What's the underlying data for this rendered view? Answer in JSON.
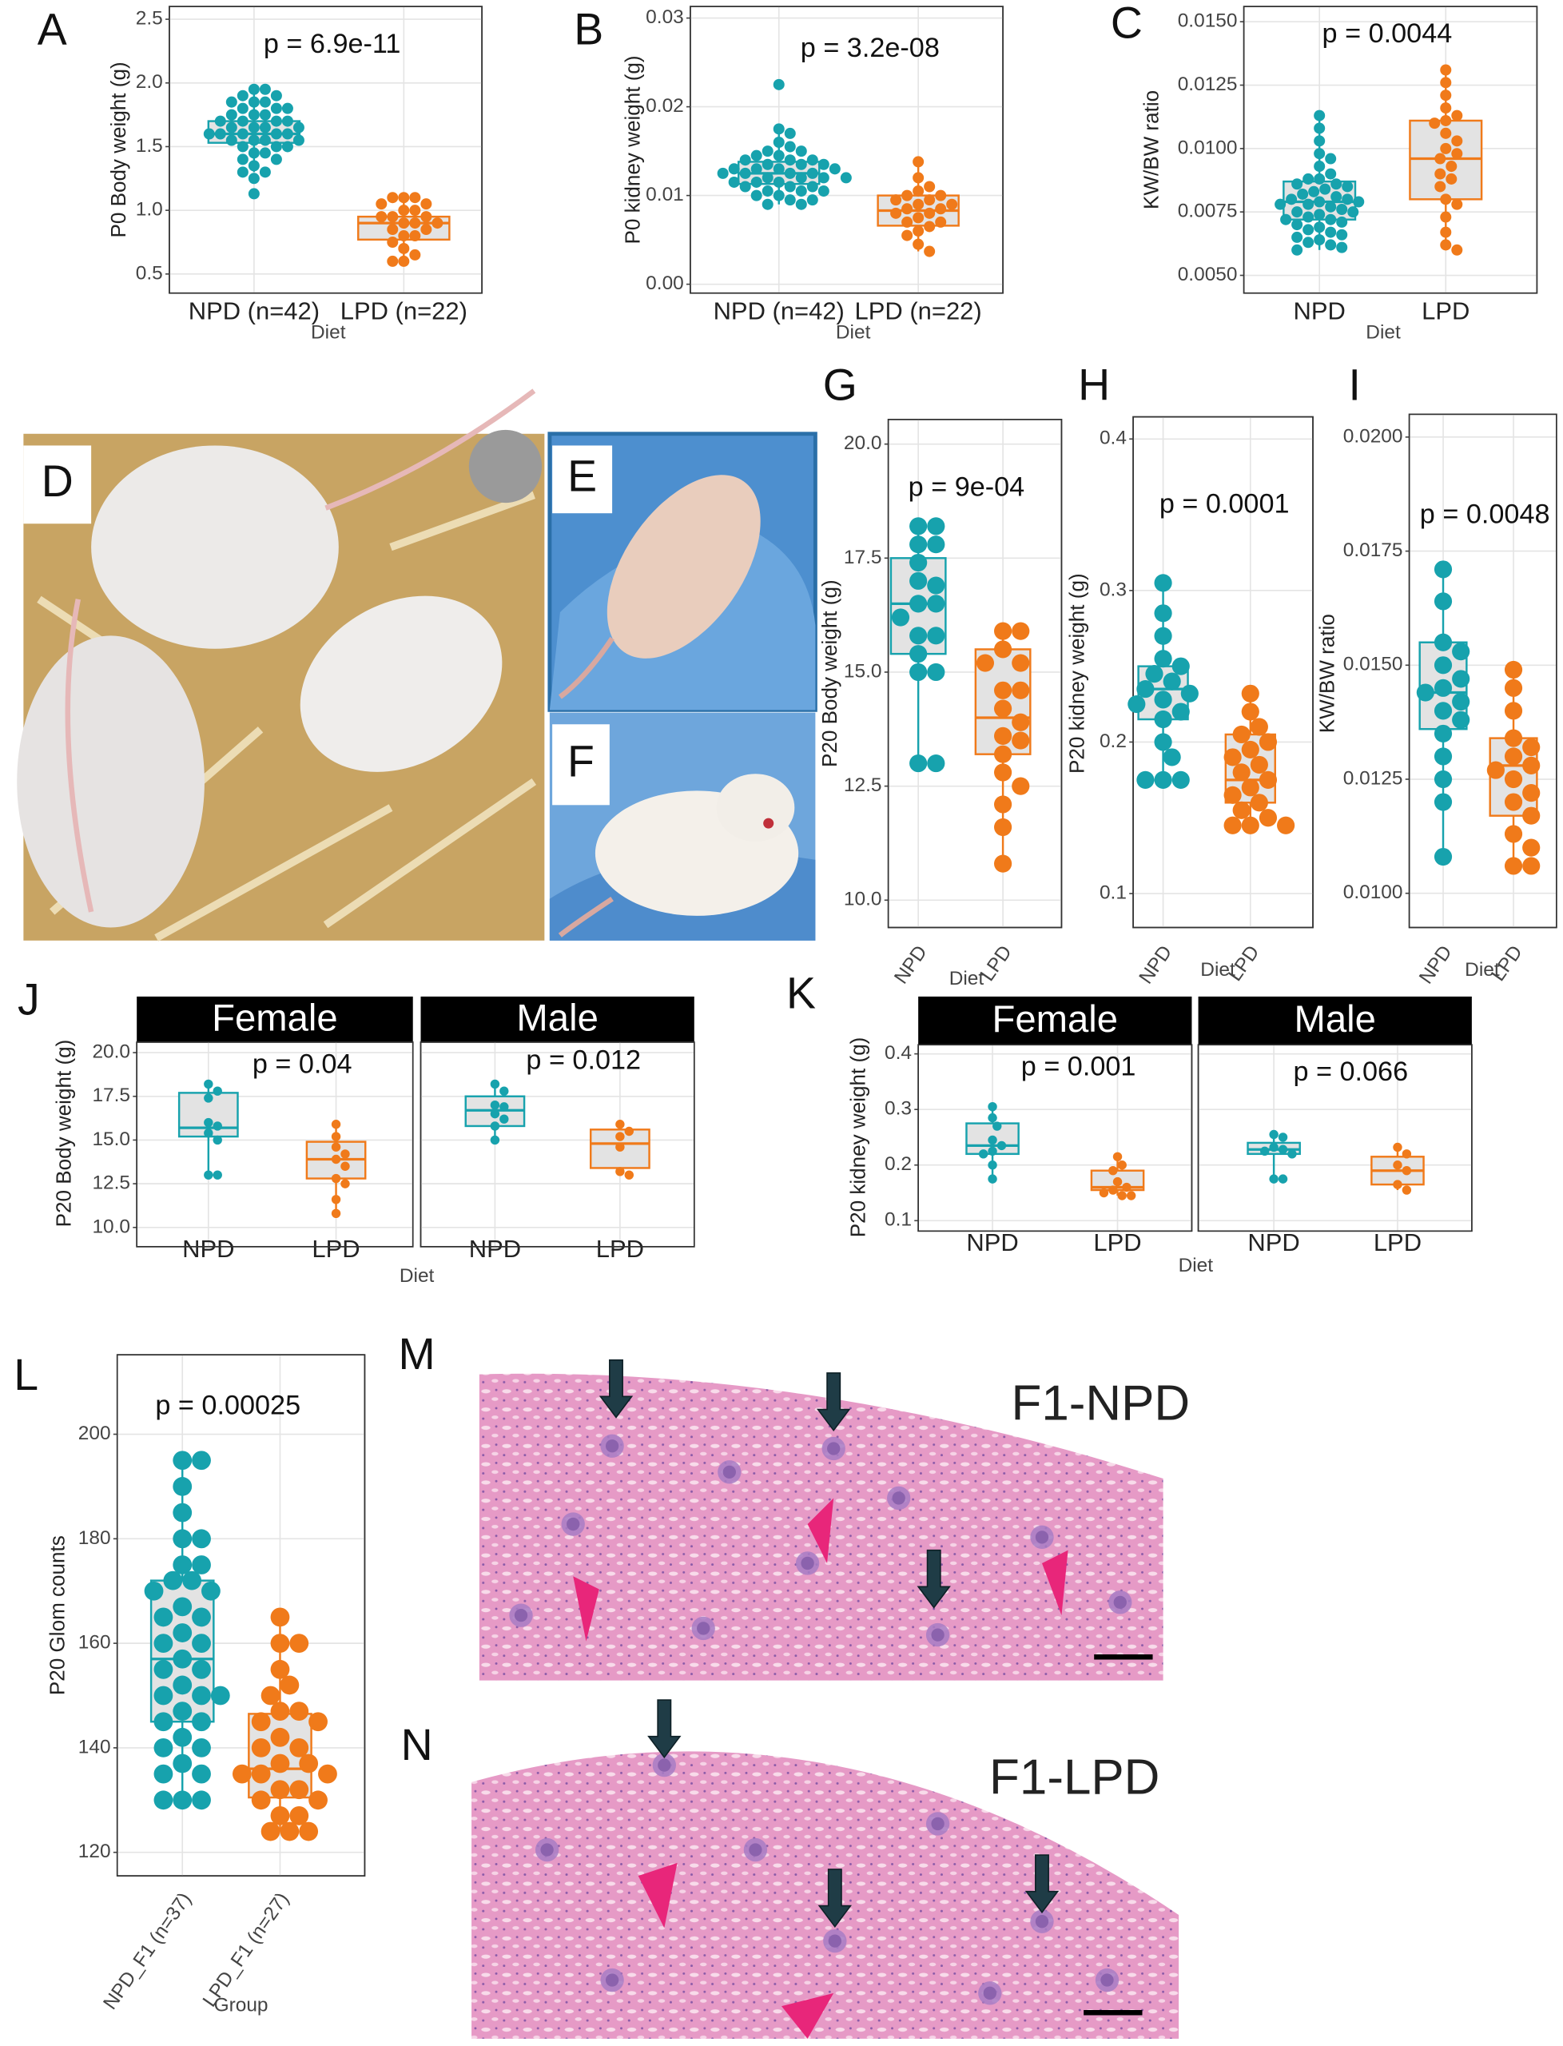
{
  "chart_data": [
    {
      "type": "box",
      "panel": "A",
      "ylabel": "P0 Body weight (g)",
      "xlabel": "Diet",
      "categories": [
        "NPD (n=42)",
        "LPD (n=22)"
      ],
      "annotation": "p = 6.9e-11",
      "ylim": [
        0.35,
        2.6
      ],
      "yticks": [
        0.5,
        {
          "value": 1,
          "label": "1.0"
        },
        1.5,
        {
          "value": 2,
          "label": "2.0"
        },
        2.5
      ],
      "grid": true,
      "box_fill": "#e3e3e3",
      "boxes": [
        {
          "color": "#17a2ad",
          "q1": 1.53,
          "median": 1.6,
          "q3": 1.7,
          "whisker_low": 1.3,
          "whisker_high": 1.95,
          "points": [
            1.95,
            1.95,
            1.9,
            1.9,
            1.85,
            1.85,
            1.85,
            1.8,
            1.8,
            1.8,
            1.75,
            1.75,
            1.75,
            1.7,
            1.7,
            1.7,
            1.7,
            1.65,
            1.65,
            1.65,
            1.65,
            1.6,
            1.6,
            1.6,
            1.6,
            1.6,
            1.55,
            1.55,
            1.55,
            1.55,
            1.5,
            1.5,
            1.5,
            1.45,
            1.45,
            1.4,
            1.4,
            1.35,
            1.3,
            1.3,
            1.25,
            1.13
          ]
        },
        {
          "color": "#f07a1a",
          "q1": 0.77,
          "median": 0.9,
          "q3": 0.95,
          "whisker_low": 0.6,
          "whisker_high": 1.1,
          "points": [
            1.1,
            1.1,
            1.1,
            1.05,
            1.05,
            1.0,
            1.0,
            0.95,
            0.95,
            0.95,
            0.9,
            0.9,
            0.9,
            0.85,
            0.85,
            0.8,
            0.8,
            0.75,
            0.7,
            0.65,
            0.6,
            0.6
          ]
        }
      ]
    },
    {
      "type": "box",
      "panel": "B",
      "ylabel": "P0 kidney weight (g)",
      "xlabel": "Diet",
      "categories": [
        "NPD (n=42)",
        "LPD (n=22)"
      ],
      "annotation": "p = 3.2e-08",
      "ylim": [
        -0.001,
        0.0313
      ],
      "yticks": [
        {
          "value": 0,
          "label": "0.00"
        },
        0.01,
        0.02,
        0.03
      ],
      "grid": true,
      "box_fill": "#e3e3e3",
      "boxes": [
        {
          "color": "#17a2ad",
          "q1": 0.0113,
          "median": 0.0125,
          "q3": 0.0138,
          "whisker_low": 0.009,
          "whisker_high": 0.0175,
          "points": [
            0.0225,
            0.0175,
            0.017,
            0.016,
            0.0155,
            0.015,
            0.015,
            0.0145,
            0.0145,
            0.014,
            0.014,
            0.014,
            0.0135,
            0.0135,
            0.0135,
            0.013,
            0.013,
            0.013,
            0.013,
            0.0125,
            0.0125,
            0.0125,
            0.0125,
            0.012,
            0.012,
            0.012,
            0.012,
            0.0115,
            0.0115,
            0.0115,
            0.011,
            0.011,
            0.011,
            0.0105,
            0.0105,
            0.0105,
            0.01,
            0.01,
            0.0095,
            0.0095,
            0.009,
            0.009
          ]
        },
        {
          "color": "#f07a1a",
          "q1": 0.0066,
          "median": 0.0083,
          "q3": 0.01,
          "whisker_low": 0.0037,
          "whisker_high": 0.0138,
          "points": [
            0.0138,
            0.012,
            0.011,
            0.0105,
            0.01,
            0.01,
            0.0095,
            0.0095,
            0.009,
            0.009,
            0.0085,
            0.0085,
            0.008,
            0.008,
            0.0075,
            0.007,
            0.007,
            0.0065,
            0.006,
            0.0055,
            0.0045,
            0.0037
          ]
        }
      ]
    },
    {
      "type": "box",
      "panel": "C",
      "ylabel": "KW/BW ratio",
      "xlabel": "Diet",
      "categories": [
        "NPD",
        "LPD"
      ],
      "annotation": "p = 0.0044",
      "ylim": [
        0.0043,
        0.0156
      ],
      "yticks": [
        {
          "value": 0.005,
          "label": "0.0050"
        },
        0.0075,
        {
          "value": 0.01,
          "label": "0.0100"
        },
        0.0125,
        {
          "value": 0.015,
          "label": "0.0150"
        }
      ],
      "grid": true,
      "box_fill": "#e3e3e3",
      "boxes": [
        {
          "color": "#17a2ad",
          "q1": 0.0072,
          "median": 0.0079,
          "q3": 0.0087,
          "whisker_low": 0.006,
          "whisker_high": 0.0113,
          "points": [
            0.0113,
            0.0108,
            0.0103,
            0.0098,
            0.0096,
            0.0093,
            0.009,
            0.0088,
            0.0088,
            0.0086,
            0.0086,
            0.0085,
            0.0084,
            0.0083,
            0.0082,
            0.0081,
            0.008,
            0.008,
            0.0079,
            0.0079,
            0.0078,
            0.0078,
            0.0077,
            0.0076,
            0.0075,
            0.0075,
            0.0074,
            0.0073,
            0.0072,
            0.0072,
            0.0071,
            0.007,
            0.0069,
            0.0068,
            0.0067,
            0.0066,
            0.0065,
            0.0064,
            0.0063,
            0.0062,
            0.0061,
            0.006
          ]
        },
        {
          "color": "#f07a1a",
          "q1": 0.008,
          "median": 0.0096,
          "q3": 0.0111,
          "whisker_low": 0.006,
          "whisker_high": 0.0131,
          "points": [
            0.0131,
            0.0126,
            0.0121,
            0.0116,
            0.0113,
            0.0111,
            0.011,
            0.0106,
            0.0103,
            0.01,
            0.0098,
            0.0096,
            0.0093,
            0.009,
            0.0088,
            0.0085,
            0.008,
            0.0078,
            0.0073,
            0.0067,
            0.0062,
            0.006
          ]
        }
      ]
    },
    {
      "type": "box",
      "panel": "G",
      "ylabel": "P20 Body weight (g)",
      "xlabel": "Diet",
      "categories": [
        "NPD",
        "LPD"
      ],
      "annotation": "p = 9e-04",
      "ylim": [
        9.4,
        20.54
      ],
      "yticks": [
        {
          "value": 10,
          "label": "10.0"
        },
        12.5,
        {
          "value": 15,
          "label": "15.0"
        },
        17.5,
        {
          "value": 20,
          "label": "20.0"
        }
      ],
      "grid": true,
      "box_fill": "#e3e3e3",
      "boxes": [
        {
          "color": "#17a2ad",
          "q1": 15.4,
          "median": 16.5,
          "q3": 17.5,
          "whisker_low": 13,
          "whisker_high": 18.2,
          "points": [
            18.2,
            18.2,
            17.8,
            17.8,
            17.4,
            17,
            16.9,
            16.5,
            16.5,
            16.2,
            15.8,
            15.8,
            15.4,
            15,
            15,
            13,
            13
          ]
        },
        {
          "color": "#f07a1a",
          "q1": 13.2,
          "median": 14,
          "q3": 15.5,
          "whisker_low": 10.8,
          "whisker_high": 15.9,
          "points": [
            15.9,
            15.9,
            15.5,
            15.2,
            15.2,
            14.6,
            14.6,
            14.2,
            13.9,
            13.6,
            13.5,
            13.2,
            12.8,
            12.5,
            12.1,
            11.6,
            10.8
          ]
        }
      ]
    },
    {
      "type": "box",
      "panel": "H",
      "ylabel": "P20 kidney weight (g)",
      "xlabel": "Diet",
      "categories": [
        "NPD",
        "LPD"
      ],
      "annotation": "p = 0.0001",
      "ylim": [
        0.0776,
        0.4146
      ],
      "yticks": [
        0.1,
        0.2,
        0.3,
        0.4
      ],
      "grid": true,
      "box_fill": "#e3e3e3",
      "boxes": [
        {
          "color": "#17a2ad",
          "q1": 0.215,
          "median": 0.235,
          "q3": 0.25,
          "whisker_low": 0.175,
          "whisker_high": 0.305,
          "points": [
            0.305,
            0.285,
            0.27,
            0.255,
            0.25,
            0.245,
            0.24,
            0.235,
            0.232,
            0.228,
            0.225,
            0.22,
            0.215,
            0.2,
            0.19,
            0.175,
            0.175,
            0.175
          ]
        },
        {
          "color": "#f07a1a",
          "q1": 0.16,
          "median": 0.175,
          "q3": 0.205,
          "whisker_low": 0.145,
          "whisker_high": 0.232,
          "points": [
            0.232,
            0.22,
            0.21,
            0.205,
            0.2,
            0.195,
            0.19,
            0.185,
            0.18,
            0.175,
            0.17,
            0.165,
            0.16,
            0.155,
            0.15,
            0.145,
            0.145,
            0.145
          ]
        }
      ]
    },
    {
      "type": "box",
      "panel": "I",
      "ylabel": "KW/BW ratio",
      "xlabel": "Diet",
      "categories": [
        "NPD",
        "LPD"
      ],
      "annotation": "p = 0.0048",
      "ylim": [
        0.00925,
        0.0205
      ],
      "yticks": [
        {
          "value": 0.01,
          "label": "0.0100"
        },
        0.0125,
        {
          "value": 0.015,
          "label": "0.0150"
        },
        0.0175,
        {
          "value": 0.02,
          "label": "0.0200"
        }
      ],
      "grid": true,
      "box_fill": "#e3e3e3",
      "boxes": [
        {
          "color": "#17a2ad",
          "q1": 0.0136,
          "median": 0.0144,
          "q3": 0.0155,
          "whisker_low": 0.0108,
          "whisker_high": 0.0171,
          "points": [
            0.0171,
            0.0164,
            0.0155,
            0.0153,
            0.015,
            0.0147,
            0.0145,
            0.0144,
            0.0142,
            0.014,
            0.0138,
            0.0135,
            0.013,
            0.0125,
            0.012,
            0.0108
          ]
        },
        {
          "color": "#f07a1a",
          "q1": 0.0117,
          "median": 0.0128,
          "q3": 0.0134,
          "whisker_low": 0.0106,
          "whisker_high": 0.0149,
          "points": [
            0.0149,
            0.0145,
            0.014,
            0.0134,
            0.0132,
            0.013,
            0.0128,
            0.0127,
            0.0125,
            0.0122,
            0.012,
            0.0117,
            0.0113,
            0.011,
            0.0106,
            0.0106
          ]
        }
      ]
    },
    {
      "type": "box",
      "panel": "J",
      "ylabel": "P20 Body weight (g)",
      "xlabel": "Diet",
      "categories": [
        "NPD",
        "LPD"
      ],
      "ylim": [
        8.9,
        20.6
      ],
      "yticks": [
        {
          "value": 10,
          "label": "10.0"
        },
        12.5,
        {
          "value": 15,
          "label": "15.0"
        },
        17.5,
        {
          "value": 20,
          "label": "20.0"
        }
      ],
      "grid": true,
      "box_fill": "#e3e3e3",
      "facets": [
        {
          "title": "Female",
          "annotation": "p = 0.04",
          "boxes": [
            {
              "color": "#17a2ad",
              "q1": 15.2,
              "median": 15.7,
              "q3": 17.7,
              "whisker_low": 13,
              "whisker_high": 18.2,
              "points": [
                18.2,
                17.8,
                17.4,
                16,
                15.8,
                15.4,
                15,
                13,
                13
              ]
            },
            {
              "color": "#f07a1a",
              "q1": 12.8,
              "median": 13.9,
              "q3": 14.9,
              "whisker_low": 10.8,
              "whisker_high": 15.9,
              "points": [
                15.9,
                15.2,
                14.6,
                14.2,
                13.9,
                13.5,
                12.8,
                12.5,
                11.6,
                10.8
              ]
            }
          ]
        },
        {
          "title": "Male",
          "annotation": "p = 0.012",
          "boxes": [
            {
              "color": "#17a2ad",
              "q1": 15.8,
              "median": 16.7,
              "q3": 17.5,
              "whisker_low": 15,
              "whisker_high": 18.2,
              "points": [
                18.2,
                17.8,
                17,
                16.9,
                16.5,
                16.2,
                15.8,
                15
              ]
            },
            {
              "color": "#f07a1a",
              "q1": 13.4,
              "median": 14.8,
              "q3": 15.6,
              "whisker_low": 13,
              "whisker_high": 15.9,
              "points": [
                15.9,
                15.5,
                15.2,
                14.6,
                13.2,
                13
              ]
            }
          ]
        }
      ]
    },
    {
      "type": "box",
      "panel": "K",
      "ylabel": "P20 kidney weight (g)",
      "xlabel": "Diet",
      "categories": [
        "NPD",
        "LPD"
      ],
      "ylim": [
        0.0813,
        0.4164
      ],
      "yticks": [
        0.1,
        0.2,
        0.3,
        0.4
      ],
      "grid": true,
      "box_fill": "#e3e3e3",
      "facets": [
        {
          "title": "Female",
          "annotation": "p = 0.001",
          "boxes": [
            {
              "color": "#17a2ad",
              "q1": 0.22,
              "median": 0.235,
              "q3": 0.275,
              "whisker_low": 0.175,
              "whisker_high": 0.305,
              "points": [
                0.305,
                0.285,
                0.27,
                0.245,
                0.235,
                0.225,
                0.22,
                0.2,
                0.175
              ]
            },
            {
              "color": "#f07a1a",
              "q1": 0.155,
              "median": 0.16,
              "q3": 0.19,
              "whisker_low": 0.145,
              "whisker_high": 0.215,
              "points": [
                0.215,
                0.2,
                0.19,
                0.17,
                0.16,
                0.155,
                0.15,
                0.145,
                0.145
              ]
            }
          ]
        },
        {
          "title": "Male",
          "annotation": "p = 0.066",
          "boxes": [
            {
              "color": "#17a2ad",
              "q1": 0.22,
              "median": 0.228,
              "q3": 0.24,
              "whisker_low": 0.175,
              "whisker_high": 0.255,
              "points": [
                0.255,
                0.25,
                0.232,
                0.228,
                0.225,
                0.22,
                0.175,
                0.175
              ]
            },
            {
              "color": "#f07a1a",
              "q1": 0.165,
              "median": 0.19,
              "q3": 0.215,
              "whisker_low": 0.155,
              "whisker_high": 0.232,
              "points": [
                0.232,
                0.22,
                0.2,
                0.19,
                0.165,
                0.155
              ]
            }
          ]
        }
      ]
    },
    {
      "type": "box",
      "panel": "L",
      "ylabel": "P20 Glom counts",
      "xlabel": "Group",
      "categories": [
        "NPD_F1 (n=37)",
        "LPD_F1 (n=27)"
      ],
      "annotation": "p = 0.00025",
      "ylim": [
        115.5,
        215.2
      ],
      "yticks": [
        120,
        140,
        160,
        180,
        200
      ],
      "grid": true,
      "box_fill": "#e3e3e3",
      "boxes": [
        {
          "color": "#17a2ad",
          "q1": 145,
          "median": 157,
          "q3": 172,
          "whisker_low": 130,
          "whisker_high": 195,
          "points": [
            195,
            195,
            190,
            185,
            180,
            180,
            175,
            175,
            172,
            172,
            170,
            170,
            167,
            165,
            165,
            162,
            160,
            160,
            157,
            155,
            155,
            152,
            150,
            150,
            150,
            147,
            145,
            145,
            142,
            140,
            140,
            137,
            135,
            135,
            130,
            130,
            130
          ]
        },
        {
          "color": "#f07a1a",
          "q1": 130.5,
          "median": 136,
          "q3": 146.5,
          "whisker_low": 124,
          "whisker_high": 165,
          "points": [
            165,
            160,
            160,
            155,
            152,
            150,
            147,
            147,
            145,
            145,
            142,
            140,
            140,
            137,
            137,
            135,
            135,
            135,
            132,
            132,
            130,
            130,
            127,
            127,
            124,
            124,
            124
          ]
        }
      ]
    }
  ],
  "image_panels": [
    "D",
    "E",
    "F",
    "M",
    "N"
  ],
  "image_labels": [
    "F1-NPD",
    "F1-LPD"
  ]
}
